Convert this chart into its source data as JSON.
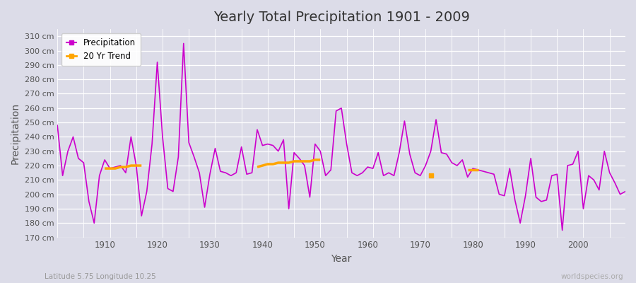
{
  "title": "Yearly Total Precipitation 1901 - 2009",
  "xlabel": "Year",
  "ylabel": "Precipitation",
  "subtitle": "Latitude 5.75 Longitude 10.25",
  "watermark": "worldspecies.org",
  "bg_color": "#dcdce8",
  "plot_bg_color": "#dcdce8",
  "grid_color": "#ffffff",
  "line_color": "#cc00cc",
  "trend_color": "#ffa500",
  "ylim": [
    170,
    315
  ],
  "yticks": [
    170,
    180,
    190,
    200,
    210,
    220,
    230,
    240,
    250,
    260,
    270,
    280,
    290,
    300,
    310
  ],
  "xlim": [
    1901,
    2009
  ],
  "years": [
    1901,
    1902,
    1903,
    1904,
    1905,
    1906,
    1907,
    1908,
    1909,
    1910,
    1911,
    1912,
    1913,
    1914,
    1915,
    1916,
    1917,
    1918,
    1919,
    1920,
    1921,
    1922,
    1923,
    1924,
    1925,
    1926,
    1927,
    1928,
    1929,
    1930,
    1931,
    1932,
    1933,
    1934,
    1935,
    1936,
    1937,
    1938,
    1939,
    1940,
    1941,
    1942,
    1943,
    1944,
    1945,
    1946,
    1947,
    1948,
    1949,
    1950,
    1951,
    1952,
    1953,
    1954,
    1955,
    1956,
    1957,
    1958,
    1959,
    1960,
    1961,
    1962,
    1963,
    1964,
    1965,
    1966,
    1967,
    1968,
    1969,
    1970,
    1971,
    1972,
    1973,
    1974,
    1975,
    1976,
    1977,
    1978,
    1979,
    1980,
    1981,
    1982,
    1983,
    1984,
    1985,
    1986,
    1987,
    1988,
    1989,
    1990,
    1991,
    1992,
    1993,
    1994,
    1995,
    1996,
    1997,
    1998,
    1999,
    2000,
    2001,
    2002,
    2003,
    2004,
    2005,
    2006,
    2007,
    2008,
    2009
  ],
  "precip": [
    248,
    213,
    230,
    240,
    225,
    222,
    195,
    180,
    213,
    224,
    218,
    219,
    220,
    215,
    240,
    220,
    185,
    202,
    235,
    292,
    240,
    204,
    202,
    226,
    305,
    236,
    226,
    215,
    191,
    214,
    232,
    216,
    215,
    213,
    215,
    233,
    214,
    215,
    245,
    234,
    235,
    234,
    230,
    238,
    190,
    229,
    225,
    220,
    198,
    235,
    230,
    213,
    217,
    258,
    260,
    235,
    215,
    213,
    215,
    219,
    218,
    229,
    213,
    215,
    213,
    229,
    251,
    228,
    215,
    213,
    220,
    230,
    252,
    229,
    228,
    222,
    220,
    224,
    212,
    218,
    217,
    216,
    215,
    214,
    200,
    199,
    218,
    196,
    180,
    199,
    225,
    198,
    195,
    196,
    213,
    214,
    175,
    220,
    221,
    230,
    190,
    213,
    210,
    203,
    230,
    215,
    208,
    200,
    202
  ],
  "trend_segments": [
    {
      "years": [
        1910,
        1911,
        1912,
        1913,
        1914,
        1915,
        1916,
        1917
      ],
      "values": [
        218,
        218,
        218,
        219,
        219,
        220,
        220,
        220
      ]
    },
    {
      "years": [
        1939,
        1940,
        1941,
        1942,
        1943,
        1944,
        1945,
        1946,
        1947,
        1948,
        1949,
        1950,
        1951
      ],
      "values": [
        219,
        220,
        221,
        221,
        222,
        222,
        222,
        223,
        223,
        223,
        223,
        224,
        224
      ]
    },
    {
      "years": [
        1972
      ],
      "values": [
        213
      ]
    },
    {
      "years": [
        1979,
        1980,
        1981
      ],
      "values": [
        217,
        217,
        217
      ]
    }
  ]
}
